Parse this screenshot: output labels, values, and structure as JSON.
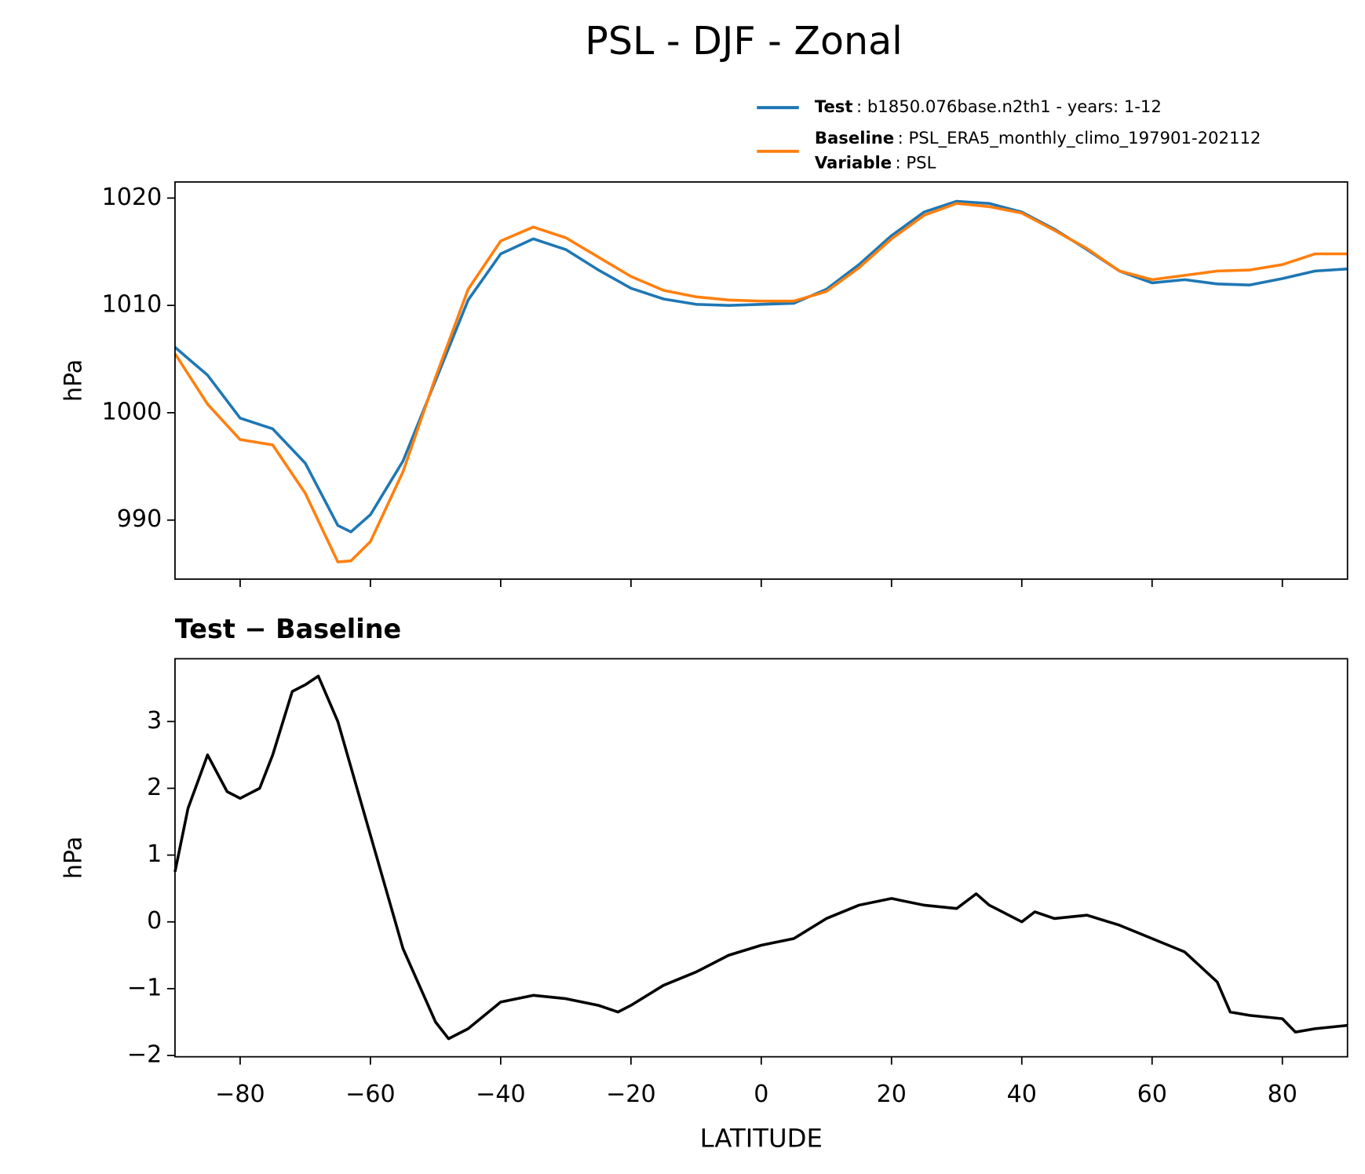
{
  "title": "PSL - DJF - Zonal",
  "chart_data": [
    {
      "type": "line",
      "ylabel": "hPa",
      "x": [
        -90,
        -85,
        -80,
        -75,
        -70,
        -65,
        -63,
        -60,
        -55,
        -50,
        -45,
        -40,
        -35,
        -30,
        -25,
        -20,
        -15,
        -10,
        -5,
        0,
        5,
        10,
        15,
        20,
        25,
        30,
        35,
        40,
        45,
        50,
        55,
        60,
        65,
        70,
        75,
        80,
        85,
        90
      ],
      "series": [
        {
          "name": "Test",
          "legend_text": ": b1850.076base.n2th1 - years: 1-12",
          "color": "#1f77b4",
          "values": [
            1006.1,
            1003.5,
            999.5,
            998.5,
            995.3,
            989.5,
            988.9,
            990.5,
            995.5,
            1003,
            1010.5,
            1014.8,
            1016.2,
            1015.2,
            1013.3,
            1011.6,
            1010.6,
            1010.1,
            1010,
            1010.1,
            1010.2,
            1011.5,
            1013.8,
            1016.5,
            1018.7,
            1019.7,
            1019.5,
            1018.7,
            1017.1,
            1015.2,
            1013.2,
            1012.1,
            1012.4,
            1012,
            1011.9,
            1012.5,
            1013.2,
            1013.4
          ]
        },
        {
          "name": "Baseline",
          "legend_text": ": PSL_ERA5_monthly_climo_197901-202112",
          "color": "#ff7f0e",
          "values": [
            1005.5,
            1000.8,
            997.5,
            997,
            992.5,
            986.1,
            986.2,
            988,
            994.5,
            1003.3,
            1011.5,
            1016,
            1017.3,
            1016.3,
            1014.5,
            1012.7,
            1011.4,
            1010.8,
            1010.5,
            1010.4,
            1010.4,
            1011.3,
            1013.5,
            1016.2,
            1018.4,
            1019.5,
            1019.2,
            1018.6,
            1017,
            1015.3,
            1013.2,
            1012.4,
            1012.8,
            1013.2,
            1013.3,
            1013.8,
            1014.8,
            1014.8
          ]
        }
      ],
      "legend_extra": {
        "name": "Variable",
        "text": ": PSL"
      },
      "xlim": [
        -90,
        90
      ],
      "xticks": [
        -80,
        -60,
        -40,
        -20,
        0,
        20,
        40,
        60,
        80
      ],
      "xticklabels": false,
      "ylim": [
        984.5,
        1021.5
      ],
      "yticks": [
        990,
        1000,
        1010,
        1020
      ]
    },
    {
      "type": "line",
      "title": "Test − Baseline",
      "ylabel": "hPa",
      "xlabel": "LATITUDE",
      "x": [
        -90,
        -88,
        -85,
        -82,
        -80,
        -77,
        -75,
        -72,
        -70,
        -68,
        -65,
        -60,
        -55,
        -50,
        -48,
        -45,
        -40,
        -35,
        -30,
        -25,
        -22,
        -20,
        -15,
        -10,
        -5,
        0,
        5,
        10,
        15,
        20,
        25,
        30,
        33,
        35,
        40,
        42,
        45,
        50,
        55,
        60,
        65,
        70,
        72,
        75,
        80,
        82,
        85,
        90
      ],
      "series": [
        {
          "color": "#000000",
          "values": [
            0.75,
            1.7,
            2.5,
            1.95,
            1.85,
            2.0,
            2.5,
            3.45,
            3.55,
            3.68,
            3.0,
            1.3,
            -0.4,
            -1.5,
            -1.75,
            -1.6,
            -1.2,
            -1.1,
            -1.15,
            -1.25,
            -1.35,
            -1.25,
            -0.95,
            -0.75,
            -0.5,
            -0.35,
            -0.25,
            0.05,
            0.25,
            0.35,
            0.25,
            0.2,
            0.42,
            0.25,
            0.0,
            0.15,
            0.05,
            0.1,
            -0.05,
            -0.25,
            -0.45,
            -0.9,
            -1.35,
            -1.4,
            -1.45,
            -1.65,
            -1.6,
            -1.55
          ]
        }
      ],
      "xlim": [
        -90,
        90
      ],
      "xticks": [
        {
          "value": -80,
          "label": "−80"
        },
        {
          "value": -60,
          "label": "−60"
        },
        {
          "value": -40,
          "label": "−40"
        },
        {
          "value": -20,
          "label": "−20"
        },
        0,
        20,
        40,
        60,
        80
      ],
      "xticklabels": true,
      "ylim": [
        -2.02,
        3.94
      ],
      "yticks": [
        {
          "value": -2,
          "label": "−2"
        },
        {
          "value": -1,
          "label": "−1"
        },
        0,
        1,
        2,
        3
      ]
    }
  ]
}
